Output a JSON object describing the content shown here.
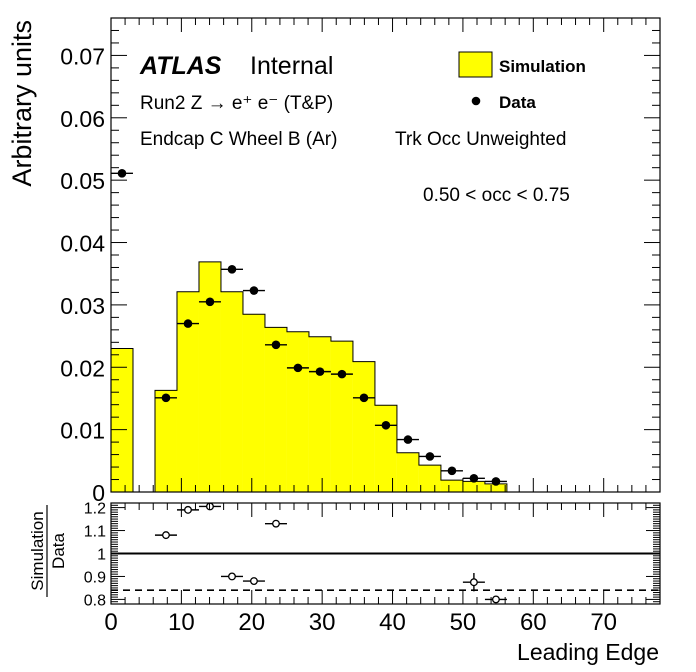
{
  "chart_data": [
    {
      "type": "bar",
      "panel": "main",
      "ylabel": "Arbitrary units",
      "xlim": [
        0,
        78
      ],
      "ylim": [
        0,
        0.076
      ],
      "y_ticks": [
        0,
        0.01,
        0.02,
        0.03,
        0.04,
        0.05,
        0.06,
        0.07
      ],
      "y_tick_labels": [
        "0",
        "0.01",
        "0.02",
        "0.03",
        "0.04",
        "0.05",
        "0.06",
        "0.07"
      ],
      "legend_position": "top-right",
      "legend": [
        "Simulation",
        "Data"
      ],
      "annotations": {
        "atlas": "ATLAS",
        "internal": "Internal",
        "run": "Run2 Z → e⁺ e⁻ (T&P)",
        "region": "Endcap C Wheel B (Ar)",
        "weighting": "Trk Occ Unweighted",
        "occ_range": "0.50 < occ < 0.75"
      },
      "colors": {
        "simulation": "#ffff00",
        "data": "#000000"
      },
      "series": [
        {
          "name": "Simulation",
          "style": "filled-histogram",
          "bin_edges": [
            0,
            3.125,
            6.25,
            9.375,
            12.5,
            15.625,
            18.75,
            21.875,
            25,
            28.125,
            31.25,
            34.375,
            37.5,
            40.625,
            43.75,
            46.875,
            50,
            53.125,
            56.25,
            78
          ],
          "values": [
            0.023,
            0,
            0.0163,
            0.0321,
            0.0369,
            0.0321,
            0.0285,
            0.0264,
            0.0257,
            0.0249,
            0.0242,
            0.0209,
            0.0139,
            0.0063,
            0.0043,
            0.0019,
            0.0017,
            0.0013,
            0
          ]
        },
        {
          "name": "Data",
          "style": "points",
          "x": [
            1.56,
            7.81,
            10.94,
            14.06,
            17.19,
            20.31,
            23.44,
            26.56,
            29.69,
            32.81,
            35.94,
            39.06,
            42.19,
            45.31,
            48.44,
            51.56,
            54.69
          ],
          "y": [
            0.0511,
            0.0151,
            0.027,
            0.0305,
            0.0357,
            0.0323,
            0.0236,
            0.0199,
            0.0193,
            0.0189,
            0.0151,
            0.0107,
            0.0084,
            0.0057,
            0.0034,
            0.0022,
            0.0017
          ]
        }
      ]
    },
    {
      "type": "scatter",
      "panel": "ratio",
      "ylabel": "Simulation",
      "ylabel_denominator": "Data",
      "xlabel": "Leading Edge",
      "xlim": [
        0,
        78
      ],
      "ylim": [
        0.78,
        1.22
      ],
      "x_ticks": [
        0,
        10,
        20,
        30,
        40,
        50,
        60,
        70
      ],
      "x_tick_labels": [
        "0",
        "10",
        "20",
        "30",
        "40",
        "50",
        "60",
        "70"
      ],
      "y_ticks": [
        0.8,
        0.9,
        1,
        1.1,
        1.2
      ],
      "y_tick_labels": [
        "0.8",
        "0.9",
        "1",
        "1.1",
        "1.2"
      ],
      "reference_lines": [
        {
          "y": 1.0,
          "style": "solid"
        },
        {
          "y": 0.84,
          "style": "dashed"
        }
      ],
      "series": [
        {
          "name": "",
          "x": [
            7.81,
            10.94,
            14.06,
            17.19,
            20.31,
            23.44,
            51.56,
            54.69
          ],
          "y": [
            1.08,
            1.19,
            1.205,
            0.9,
            0.88,
            1.13,
            0.875,
            0.8
          ],
          "yerr": [
            0.005,
            0.005,
            0.005,
            0.005,
            0.005,
            0.005,
            0.04,
            0.01
          ]
        }
      ]
    }
  ]
}
